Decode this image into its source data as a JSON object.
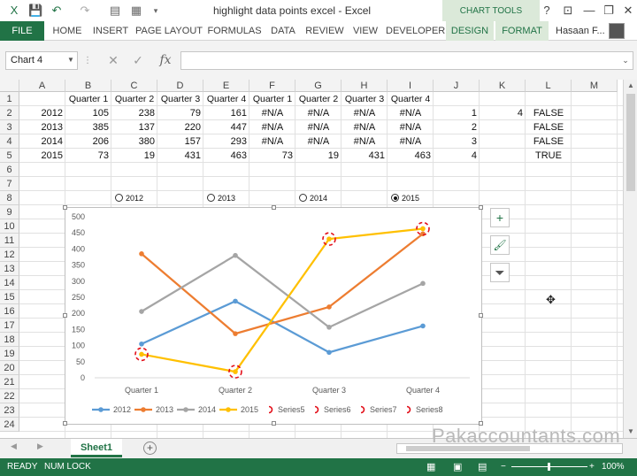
{
  "title_bar": {
    "title": "highlight data points excel - Excel",
    "chart_tools": "CHART TOOLS",
    "minimize": "—",
    "restore": "❐",
    "close": "✕",
    "help": "?"
  },
  "ribbon": {
    "file": "FILE",
    "tabs": [
      "HOME",
      "INSERT",
      "PAGE LAYOUT",
      "FORMULAS",
      "DATA",
      "REVIEW",
      "VIEW",
      "DEVELOPER"
    ],
    "chart_tabs": [
      "DESIGN",
      "FORMAT"
    ],
    "user": "Hasaan F..."
  },
  "formula_bar": {
    "name_box": "Chart 4",
    "cancel": "✕",
    "enter": "✓",
    "fx": "fx",
    "value": ""
  },
  "columns": [
    "A",
    "B",
    "C",
    "D",
    "E",
    "F",
    "G",
    "H",
    "I",
    "J",
    "K",
    "L",
    "M"
  ],
  "rows": [
    "1",
    "2",
    "3",
    "4",
    "5",
    "6",
    "7",
    "8",
    "9",
    "10",
    "11",
    "12",
    "13",
    "14",
    "15",
    "16",
    "17",
    "18",
    "19",
    "20",
    "21",
    "22",
    "23",
    "24"
  ],
  "cells": {
    "r1": [
      "",
      "Quarter 1",
      "Quarter 2",
      "Quarter 3",
      "Quarter 4",
      "Quarter 1",
      "Quarter 2",
      "Quarter 3",
      "Quarter 4",
      "",
      "",
      "",
      ""
    ],
    "r2": [
      "2012",
      "105",
      "238",
      "79",
      "161",
      "#N/A",
      "#N/A",
      "#N/A",
      "#N/A",
      "1",
      "4",
      "FALSE",
      ""
    ],
    "r3": [
      "2013",
      "385",
      "137",
      "220",
      "447",
      "#N/A",
      "#N/A",
      "#N/A",
      "#N/A",
      "2",
      "",
      "FALSE",
      ""
    ],
    "r4": [
      "2014",
      "206",
      "380",
      "157",
      "293",
      "#N/A",
      "#N/A",
      "#N/A",
      "#N/A",
      "3",
      "",
      "FALSE",
      ""
    ],
    "r5": [
      "2015",
      "73",
      "19",
      "431",
      "463",
      "73",
      "19",
      "431",
      "463",
      "4",
      "",
      "TRUE",
      ""
    ]
  },
  "radio_options": [
    {
      "label": "2012",
      "selected": false
    },
    {
      "label": "2013",
      "selected": false
    },
    {
      "label": "2014",
      "selected": false
    },
    {
      "label": "2015",
      "selected": true
    }
  ],
  "chart_buttons": {
    "add": "+",
    "style": "🖌",
    "filter": "⏷"
  },
  "chart_data": {
    "type": "line",
    "categories": [
      "Quarter 1",
      "Quarter 2",
      "Quarter 3",
      "Quarter 4"
    ],
    "ylim": [
      0,
      500
    ],
    "yticks": [
      0,
      50,
      100,
      150,
      200,
      250,
      300,
      350,
      400,
      450,
      500
    ],
    "series": [
      {
        "name": "2012",
        "values": [
          105,
          238,
          79,
          161
        ],
        "color": "#5b9bd5"
      },
      {
        "name": "2013",
        "values": [
          385,
          137,
          220,
          447
        ],
        "color": "#ed7d31"
      },
      {
        "name": "2014",
        "values": [
          206,
          380,
          157,
          293
        ],
        "color": "#a5a5a5"
      },
      {
        "name": "2015",
        "values": [
          73,
          19,
          431,
          463
        ],
        "color": "#ffc000"
      }
    ],
    "highlight_series": [
      {
        "name": "Series5",
        "values": [
          73,
          null,
          null,
          null
        ]
      },
      {
        "name": "Series6",
        "values": [
          null,
          19,
          null,
          null
        ]
      },
      {
        "name": "Series7",
        "values": [
          null,
          null,
          431,
          null
        ]
      },
      {
        "name": "Series8",
        "values": [
          null,
          null,
          null,
          463
        ]
      }
    ],
    "highlight_color": "#e3101a",
    "grid": false,
    "legend_position": "bottom"
  },
  "sheet_tabs": {
    "active": "Sheet1",
    "add": "+"
  },
  "watermark": "Pakaccountants.com",
  "status_bar": {
    "ready": "READY",
    "num_lock": "NUM LOCK",
    "zoom": "100%"
  }
}
